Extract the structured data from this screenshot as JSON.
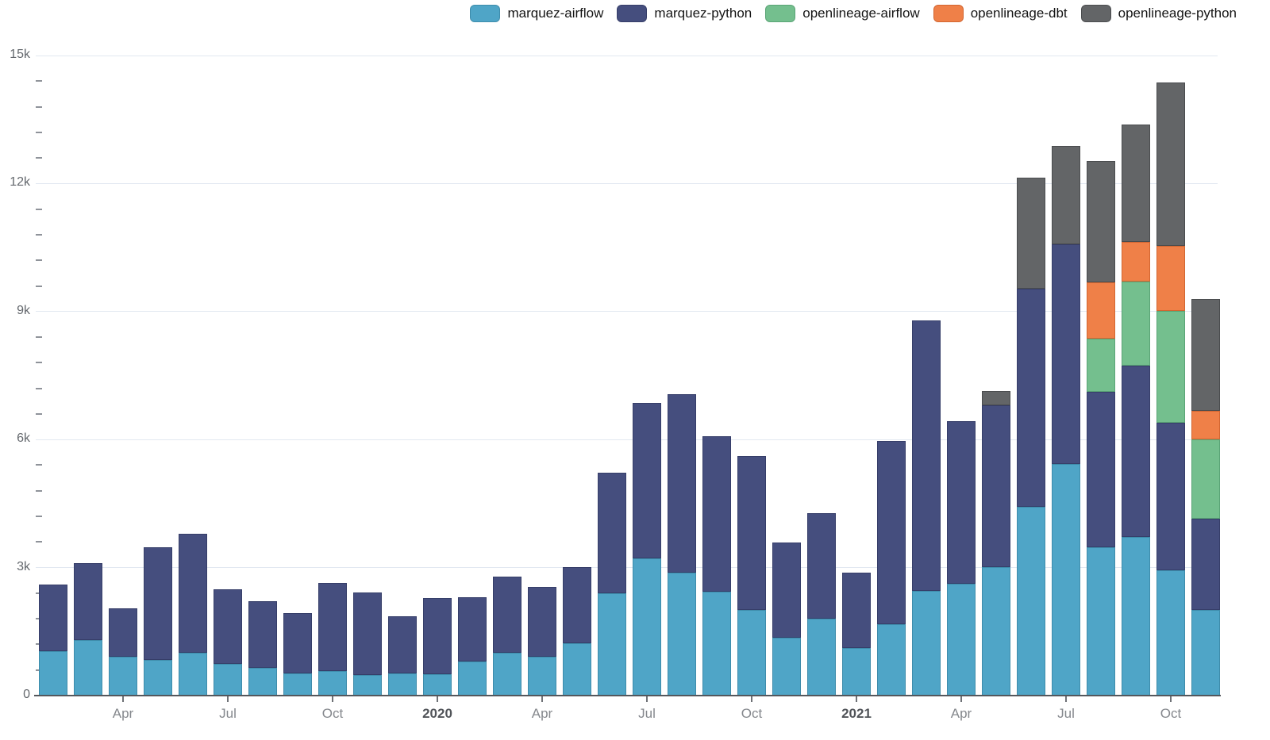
{
  "chart_data": {
    "type": "bar",
    "stacked": true,
    "grid": true,
    "legend_position": "top-right",
    "ylim": [
      0,
      15000
    ],
    "y_minor_step": 600,
    "y_ticks": [
      {
        "value": 0,
        "label": "0"
      },
      {
        "value": 3000,
        "label": "3k"
      },
      {
        "value": 6000,
        "label": "6k"
      },
      {
        "value": 9000,
        "label": "9k"
      },
      {
        "value": 12000,
        "label": "12k"
      },
      {
        "value": 15000,
        "label": "15k"
      }
    ],
    "x_ticks": [
      {
        "index": 2,
        "label": "Apr",
        "bold": false
      },
      {
        "index": 5,
        "label": "Jul",
        "bold": false
      },
      {
        "index": 8,
        "label": "Oct",
        "bold": false
      },
      {
        "index": 11,
        "label": "2020",
        "bold": true
      },
      {
        "index": 14,
        "label": "Apr",
        "bold": false
      },
      {
        "index": 17,
        "label": "Jul",
        "bold": false
      },
      {
        "index": 20,
        "label": "Oct",
        "bold": false
      },
      {
        "index": 23,
        "label": "2021",
        "bold": true
      },
      {
        "index": 26,
        "label": "Apr",
        "bold": false
      },
      {
        "index": 29,
        "label": "Jul",
        "bold": false
      },
      {
        "index": 32,
        "label": "Oct",
        "bold": false
      }
    ],
    "categories": [
      "Feb 2019",
      "Mar 2019",
      "Apr 2019",
      "May 2019",
      "Jun 2019",
      "Jul 2019",
      "Aug 2019",
      "Sep 2019",
      "Oct 2019",
      "Nov 2019",
      "Dec 2019",
      "Jan 2020",
      "Feb 2020",
      "Mar 2020",
      "Apr 2020",
      "May 2020",
      "Jun 2020",
      "Jul 2020",
      "Aug 2020",
      "Sep 2020",
      "Oct 2020",
      "Nov 2020",
      "Dec 2020",
      "Jan 2021",
      "Feb 2021",
      "Mar 2021",
      "Apr 2021",
      "May 2021",
      "Jun 2021",
      "Jul 2021",
      "Aug 2021",
      "Sep 2021",
      "Oct 2021",
      "Nov 2021"
    ],
    "series": [
      {
        "name": "marquez-airflow",
        "color": "#4FA5C7",
        "border": "#3E8CAB",
        "values": [
          1040,
          1310,
          910,
          830,
          1000,
          740,
          650,
          520,
          580,
          490,
          520,
          510,
          800,
          1000,
          910,
          1230,
          2400,
          3220,
          2880,
          2440,
          2010,
          1360,
          1800,
          1110,
          1670,
          2450,
          2620,
          3020,
          4420,
          5420,
          3480,
          3710,
          2930,
          2000
        ]
      },
      {
        "name": "marquez-python",
        "color": "#454E7E",
        "border": "#363E69",
        "values": [
          1570,
          1800,
          1130,
          2640,
          2790,
          1760,
          1560,
          1410,
          2060,
          1930,
          1330,
          1780,
          1510,
          1790,
          1640,
          1790,
          2830,
          3640,
          4190,
          3630,
          3610,
          2230,
          2470,
          1770,
          4290,
          6340,
          3810,
          3780,
          5110,
          5150,
          3640,
          4030,
          3460,
          2150
        ]
      },
      {
        "name": "openlineage-airflow",
        "color": "#74BF8E",
        "border": "#5AA476",
        "values": [
          0,
          0,
          0,
          0,
          0,
          0,
          0,
          0,
          0,
          0,
          0,
          0,
          0,
          0,
          0,
          0,
          0,
          0,
          0,
          0,
          0,
          0,
          0,
          0,
          0,
          0,
          0,
          0,
          0,
          0,
          1240,
          1960,
          2630,
          1860
        ]
      },
      {
        "name": "openlineage-dbt",
        "color": "#EF8048",
        "border": "#D26631",
        "values": [
          0,
          0,
          0,
          0,
          0,
          0,
          0,
          0,
          0,
          0,
          0,
          0,
          0,
          0,
          0,
          0,
          0,
          0,
          0,
          0,
          0,
          0,
          0,
          0,
          0,
          0,
          0,
          0,
          0,
          0,
          1320,
          940,
          1520,
          670
        ]
      },
      {
        "name": "openlineage-python",
        "color": "#636567",
        "border": "#4A4C4E",
        "values": [
          0,
          0,
          0,
          0,
          0,
          0,
          0,
          0,
          0,
          0,
          0,
          0,
          0,
          0,
          0,
          0,
          0,
          0,
          0,
          0,
          0,
          0,
          0,
          0,
          0,
          0,
          0,
          340,
          2600,
          2320,
          2840,
          2750,
          3820,
          2620
        ]
      }
    ]
  }
}
